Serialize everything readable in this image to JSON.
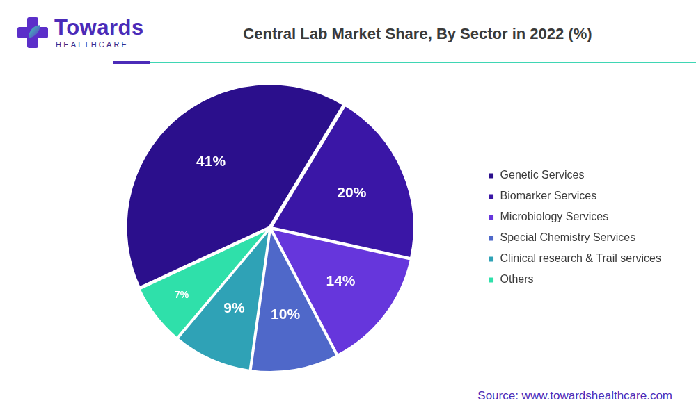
{
  "logo": {
    "name": "Towards",
    "tagline": "HEALTHCARE"
  },
  "source": "Source: www.towardshealthcare.com",
  "chart_data": {
    "type": "pie",
    "title": "Central Lab Market Share, By Sector in 2022 (%)",
    "categories": [
      "Genetic Services",
      "Biomarker Services",
      "Microbiology Services",
      "Special Chemistry Services",
      "Clinical research & Trail services",
      "Others"
    ],
    "values": [
      41,
      20,
      14,
      10,
      9,
      7
    ],
    "value_labels": [
      "41%",
      "20%",
      "14%",
      "10%",
      "9%",
      "7%"
    ],
    "colors": [
      "#2b0f8c",
      "#3a16a6",
      "#6636dc",
      "#4f68c9",
      "#2fa2b6",
      "#2fe0aa"
    ],
    "data_labels": true,
    "legend": "right"
  }
}
